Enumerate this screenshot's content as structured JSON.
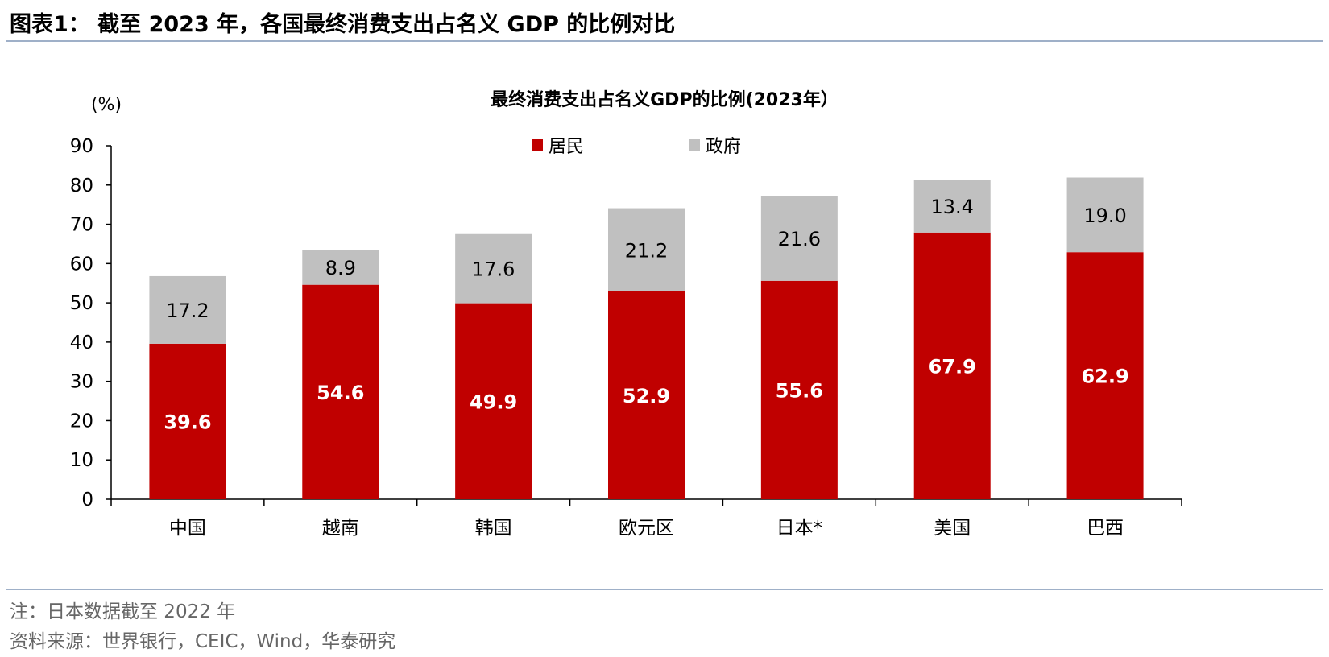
{
  "figure_title": "图表1：  截至 2023 年，各国最终消费支出占名义 GDP 的比例对比",
  "notes": {
    "note": "注：日本数据截至 2022 年",
    "source": "资料来源：世界银行，CEIC，Wind，华泰研究"
  },
  "colors": {
    "household": "#c00000",
    "government": "#c0c0c0",
    "rule": "#9fb0c8"
  },
  "chart_data": {
    "type": "bar",
    "stacked": true,
    "title": "最终消费支出占名义GDP的比例(2023年）",
    "unit_label": "(%)",
    "ylim": [
      0,
      90
    ],
    "yticks": [
      0,
      10,
      20,
      30,
      40,
      50,
      60,
      70,
      80,
      90
    ],
    "legend_position": "top-center",
    "categories": [
      "中国",
      "越南",
      "韩国",
      "欧元区",
      "日本*",
      "美国",
      "巴西"
    ],
    "series": [
      {
        "name": "居民",
        "values": [
          39.6,
          54.6,
          49.9,
          52.9,
          55.6,
          67.9,
          62.9
        ]
      },
      {
        "name": "政府",
        "values": [
          17.2,
          8.9,
          17.6,
          21.2,
          21.6,
          13.4,
          19.0
        ]
      }
    ],
    "data_labels": {
      "居民": [
        "39.6",
        "54.6",
        "49.9",
        "52.9",
        "55.6",
        "67.9",
        "62.9"
      ],
      "政府": [
        "17.2",
        "8.9",
        "17.6",
        "21.2",
        "21.6",
        "13.4",
        "19.0"
      ]
    }
  }
}
